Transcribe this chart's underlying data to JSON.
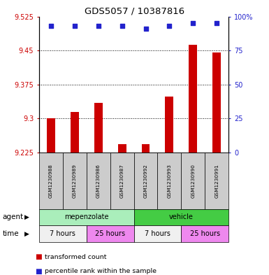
{
  "title": "GDS5057 / 10387816",
  "samples": [
    "GSM1230988",
    "GSM1230989",
    "GSM1230986",
    "GSM1230987",
    "GSM1230992",
    "GSM1230993",
    "GSM1230990",
    "GSM1230991"
  ],
  "transformed_counts": [
    9.3,
    9.315,
    9.335,
    9.243,
    9.243,
    9.348,
    9.463,
    9.445
  ],
  "percentile_ranks": [
    93,
    93,
    93,
    93,
    91,
    93,
    95,
    95
  ],
  "ylim_left": [
    9.225,
    9.525
  ],
  "ylim_right": [
    0,
    100
  ],
  "left_ticks": [
    9.225,
    9.3,
    9.375,
    9.45,
    9.525
  ],
  "right_ticks": [
    0,
    25,
    50,
    75,
    100
  ],
  "bar_color": "#cc0000",
  "dot_color": "#2222cc",
  "agent_groups": [
    {
      "label": "mepenzolate",
      "start": 0,
      "end": 3,
      "color": "#aaeebb"
    },
    {
      "label": "vehicle",
      "start": 4,
      "end": 7,
      "color": "#44cc44"
    }
  ],
  "time_groups": [
    {
      "label": "7 hours",
      "start": 0,
      "end": 1,
      "color": "#f0f0f0"
    },
    {
      "label": "25 hours",
      "start": 2,
      "end": 3,
      "color": "#ee88ee"
    },
    {
      "label": "7 hours",
      "start": 4,
      "end": 5,
      "color": "#f0f0f0"
    },
    {
      "label": "25 hours",
      "start": 6,
      "end": 7,
      "color": "#ee88ee"
    }
  ],
  "legend_items": [
    {
      "label": "transformed count",
      "color": "#cc0000"
    },
    {
      "label": "percentile rank within the sample",
      "color": "#2222cc"
    }
  ],
  "sample_box_color": "#cccccc"
}
